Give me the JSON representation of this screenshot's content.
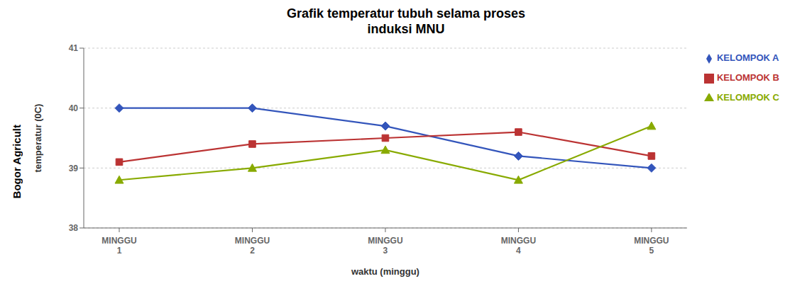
{
  "chart_data": {
    "type": "line",
    "title": "Grafik temperatur tubuh selama proses\ninduksi MNU",
    "xlabel": "waktu (minggu)",
    "ylabel": "temperatur (0C)",
    "categories": [
      "MINGGU\n1",
      "MINGGU\n2",
      "MINGGU\n3",
      "MINGGU\n4",
      "MINGGU\n5"
    ],
    "series": [
      {
        "name": "KELOMPOK A",
        "color": "#3355BB",
        "marker": "diamond",
        "values": [
          40.0,
          40.0,
          39.7,
          39.2,
          39.0
        ]
      },
      {
        "name": "KELOMPOK B",
        "color": "#BB3333",
        "marker": "square",
        "values": [
          39.1,
          39.4,
          39.5,
          39.6,
          39.2
        ]
      },
      {
        "name": "KELOMPOK C",
        "color": "#88AA00",
        "marker": "triangle",
        "values": [
          38.8,
          39.0,
          39.3,
          38.8,
          39.7
        ]
      }
    ],
    "ylim": [
      38,
      41
    ],
    "yticks": [
      38,
      39,
      40,
      41
    ],
    "grid": true,
    "legend": "right",
    "annotations": [
      "Bogor Agricult"
    ]
  }
}
